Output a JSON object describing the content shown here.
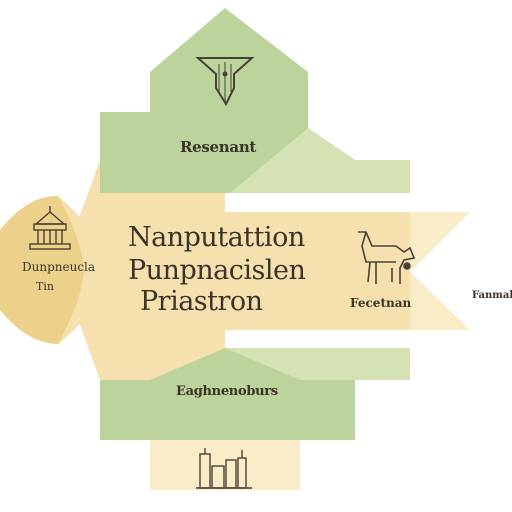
{
  "diagram": {
    "top_label": "Resenant",
    "center_lines": [
      "Nanputattion",
      "Punpnacislen",
      "Priastron"
    ],
    "left_labels": [
      "Dunpneucla",
      "Tin"
    ],
    "right_label": "Fecetnan",
    "far_right_label": "Fanmalicas",
    "bottom_label": "Eaghnenoburs",
    "colors": {
      "green": "#bcd39b",
      "green_light": "#d4e2b4",
      "cream": "#f6e1ae",
      "cream_light": "#f9ecc6",
      "gold": "#ecd18a",
      "ink": "#3b3328"
    },
    "icons": [
      "fountain-pen-icon",
      "temple-icon",
      "horse-icon",
      "city-skyline-icon"
    ]
  }
}
